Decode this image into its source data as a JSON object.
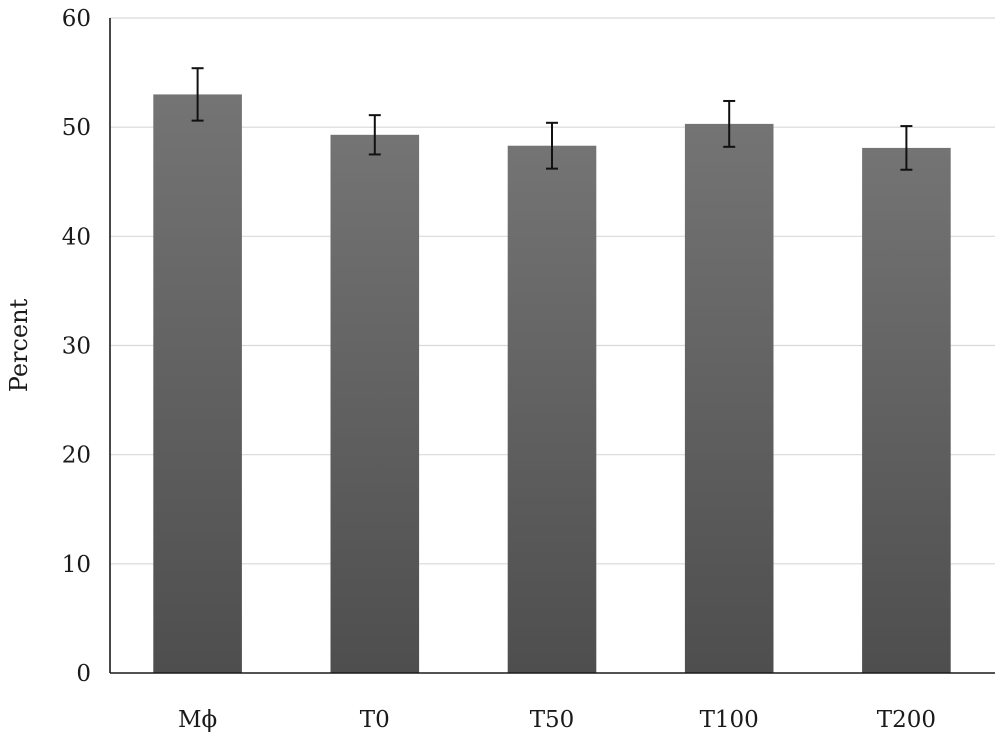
{
  "chart_data": {
    "type": "bar",
    "title": "",
    "xlabel": "",
    "ylabel": "Percent",
    "ylim": [
      0,
      60
    ],
    "yticks": [
      0,
      10,
      20,
      30,
      40,
      50,
      60
    ],
    "grid": true,
    "legend": "none",
    "categories": [
      "Mϕ",
      "T0",
      "T50",
      "T100",
      "T200"
    ],
    "series": [
      {
        "values": [
          53.0,
          49.3,
          48.3,
          50.3,
          48.1
        ],
        "error": [
          2.4,
          1.8,
          2.1,
          2.1,
          2.0
        ],
        "color_top": "#747474",
        "color_bottom": "#4e4e4e"
      }
    ]
  }
}
